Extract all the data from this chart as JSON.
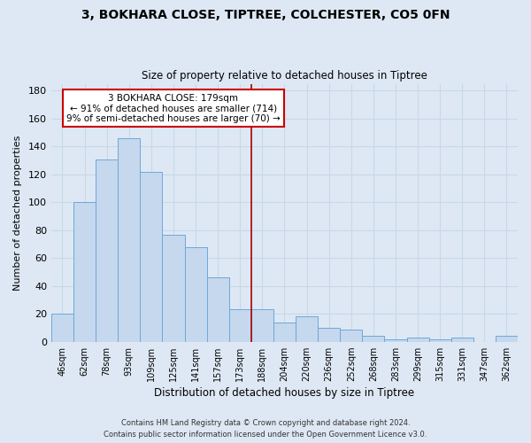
{
  "title": "3, BOKHARA CLOSE, TIPTREE, COLCHESTER, CO5 0FN",
  "subtitle": "Size of property relative to detached houses in Tiptree",
  "xlabel": "Distribution of detached houses by size in Tiptree",
  "ylabel": "Number of detached properties",
  "bar_labels": [
    "46sqm",
    "62sqm",
    "78sqm",
    "93sqm",
    "109sqm",
    "125sqm",
    "141sqm",
    "157sqm",
    "173sqm",
    "188sqm",
    "204sqm",
    "220sqm",
    "236sqm",
    "252sqm",
    "268sqm",
    "283sqm",
    "299sqm",
    "315sqm",
    "331sqm",
    "347sqm",
    "362sqm"
  ],
  "bar_values": [
    20,
    100,
    131,
    146,
    122,
    77,
    68,
    46,
    23,
    23,
    14,
    18,
    10,
    9,
    4,
    2,
    3,
    2,
    3,
    0,
    4
  ],
  "bar_color": "#c5d8ee",
  "bar_edge_color": "#6ea8d8",
  "grid_color": "#c8d8e8",
  "background_color": "#dde8f4",
  "vline_x": 9.0,
  "vline_color": "#aa0000",
  "annotation_lines": [
    "3 BOKHARA CLOSE: 179sqm",
    "← 91% of detached houses are smaller (714)",
    "9% of semi-detached houses are larger (70) →"
  ],
  "ylim": [
    0,
    185
  ],
  "yticks": [
    0,
    20,
    40,
    60,
    80,
    100,
    120,
    140,
    160,
    180
  ],
  "footnote1": "Contains HM Land Registry data © Crown copyright and database right 2024.",
  "footnote2": "Contains public sector information licensed under the Open Government Licence v3.0."
}
